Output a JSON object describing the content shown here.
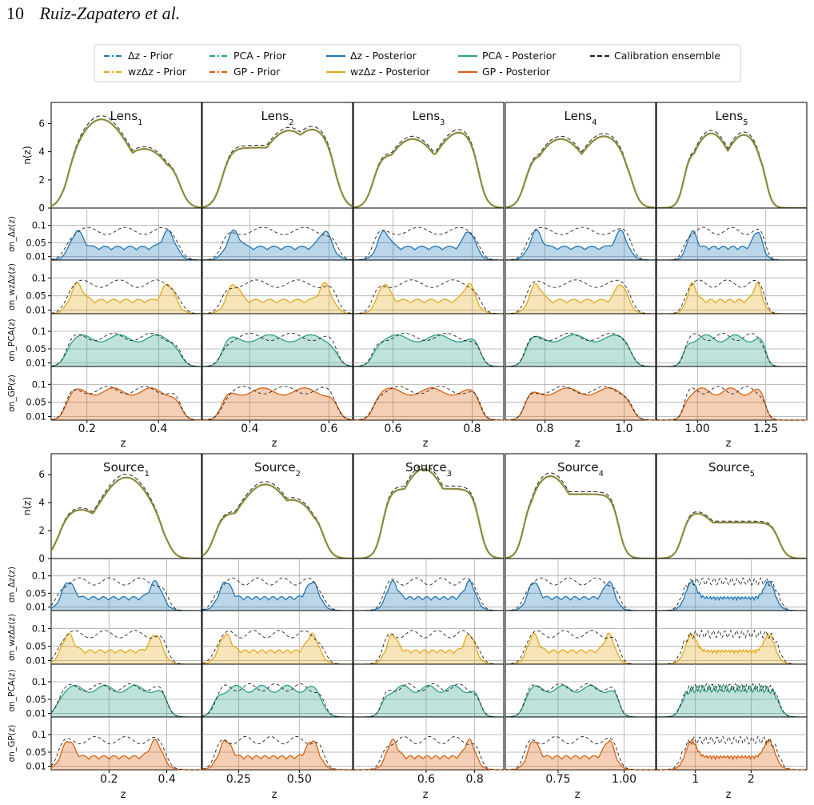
{
  "header": {
    "page_number": "10",
    "running_title": "Ruiz-Zapatero et al."
  },
  "legend": {
    "entries": [
      {
        "label_html": "Δ<tspan baseline-shift='sub' font-size='9'>z</tspan> - Prior",
        "label": "Δz - Prior",
        "color": "#1f77b4",
        "style": "dashdot"
      },
      {
        "label": "wzΔz - Prior",
        "color": "#e6a817",
        "style": "dashdot"
      },
      {
        "label": "PCA - Prior",
        "color": "#2ca089",
        "style": "dashdot"
      },
      {
        "label": "GP - Prior",
        "color": "#d95f0e",
        "style": "dashdot"
      },
      {
        "label": "Δz - Posterior",
        "color": "#1f77b4",
        "style": "solid"
      },
      {
        "label": "wzΔz - Posterior",
        "color": "#e6a817",
        "style": "solid"
      },
      {
        "label": "PCA - Posterior",
        "color": "#2ca089",
        "style": "solid"
      },
      {
        "label": "GP - Posterior",
        "color": "#d95f0e",
        "style": "solid"
      },
      {
        "label": "Calibration ensemble",
        "color": "#222222",
        "style": "dashed"
      }
    ]
  },
  "colors": {
    "dz": "#1f77b4",
    "wz": "#e6a817",
    "pca": "#2ca089",
    "gp": "#d95f0e",
    "calib": "#222222",
    "nz": "#8a8a3a"
  },
  "row_labels": [
    "n(z)",
    "σn_Δz(z)",
    "σn_wzΔz(z)",
    "σn_PCA(z)",
    "σn_GP(z)"
  ],
  "nz_yticks": [
    "0",
    "2",
    "4",
    "6"
  ],
  "sigma_yticks": [
    "0.01",
    "0.05",
    "0.1"
  ],
  "xlabel": "z",
  "lens": {
    "titles": [
      "Lens1",
      "Lens2",
      "Lens3",
      "Lens4",
      "Lens5"
    ],
    "panels": [
      {
        "xlim": [
          0.1,
          0.52
        ],
        "xticks": [
          0.2,
          0.4
        ],
        "xticklabels": [
          "0.2",
          "0.4"
        ],
        "peaks": [
          [
            0.24,
            6.3
          ],
          [
            0.36,
            4.2
          ]
        ],
        "range": [
          0.14,
          0.46
        ]
      },
      {
        "xlim": [
          0.28,
          0.66
        ],
        "xticks": [
          0.4,
          0.6
        ],
        "xticklabels": [
          "0.4",
          "0.6"
        ],
        "peaks": [
          [
            0.5,
            5.5
          ],
          [
            0.56,
            5.6
          ]
        ],
        "range": [
          0.33,
          0.62
        ]
      },
      {
        "xlim": [
          0.5,
          0.88
        ],
        "xticks": [
          0.6,
          0.8
        ],
        "xticklabels": [
          "0.6",
          "0.8"
        ],
        "peaks": [
          [
            0.65,
            4.9
          ],
          [
            0.77,
            5.4
          ]
        ],
        "range": [
          0.55,
          0.82
        ]
      },
      {
        "xlim": [
          0.7,
          1.08
        ],
        "xticks": [
          0.8,
          1.0
        ],
        "xticklabels": [
          "0.8",
          "1.0"
        ],
        "peaks": [
          [
            0.84,
            4.9
          ],
          [
            0.95,
            5.1
          ]
        ],
        "range": [
          0.75,
          1.02
        ]
      },
      {
        "xlim": [
          0.85,
          1.4
        ],
        "xticks": [
          1.0,
          1.25
        ],
        "xticklabels": [
          "1.00",
          "1.25"
        ],
        "peaks": [
          [
            1.05,
            5.3
          ],
          [
            1.17,
            5.2
          ]
        ],
        "range": [
          0.95,
          1.25
        ]
      }
    ]
  },
  "source": {
    "titles": [
      "Source1",
      "Source2",
      "Source3",
      "Source4",
      "Source5"
    ],
    "panels": [
      {
        "xlim": [
          0.0,
          0.52
        ],
        "xticks": [
          0.2,
          0.4
        ],
        "xticklabels": [
          "0.2",
          "0.4"
        ],
        "peaks": [
          [
            0.1,
            3.5
          ],
          [
            0.26,
            5.8
          ]
        ],
        "range": [
          0.02,
          0.4
        ]
      },
      {
        "xlim": [
          0.1,
          0.72
        ],
        "xticks": [
          0.25,
          0.5
        ],
        "xticklabels": [
          "0.25",
          "0.50"
        ],
        "peaks": [
          [
            0.36,
            5.3
          ],
          [
            0.47,
            4.2
          ]
        ],
        "range": [
          0.15,
          0.6
        ]
      },
      {
        "xlim": [
          0.3,
          0.92
        ],
        "xticks": [
          0.6,
          0.8
        ],
        "xticklabels": [
          "0.6",
          "0.8"
        ],
        "peaks": [
          [
            0.59,
            6.4
          ]
        ],
        "range": [
          0.42,
          0.82
        ]
      },
      {
        "xlim": [
          0.55,
          1.12
        ],
        "xticks": [
          0.75,
          1.0
        ],
        "xticklabels": [
          "0.75",
          "1.00"
        ],
        "peaks": [
          [
            0.72,
            5.9
          ]
        ],
        "range": [
          0.62,
          0.98
        ]
      },
      {
        "xlim": [
          0.3,
          3.0
        ],
        "xticks": [
          1,
          2
        ],
        "xticklabels": [
          "1",
          "2"
        ],
        "peaks": [
          [
            0.97,
            3.3
          ]
        ],
        "range": [
          0.75,
          2.5
        ]
      }
    ]
  }
}
